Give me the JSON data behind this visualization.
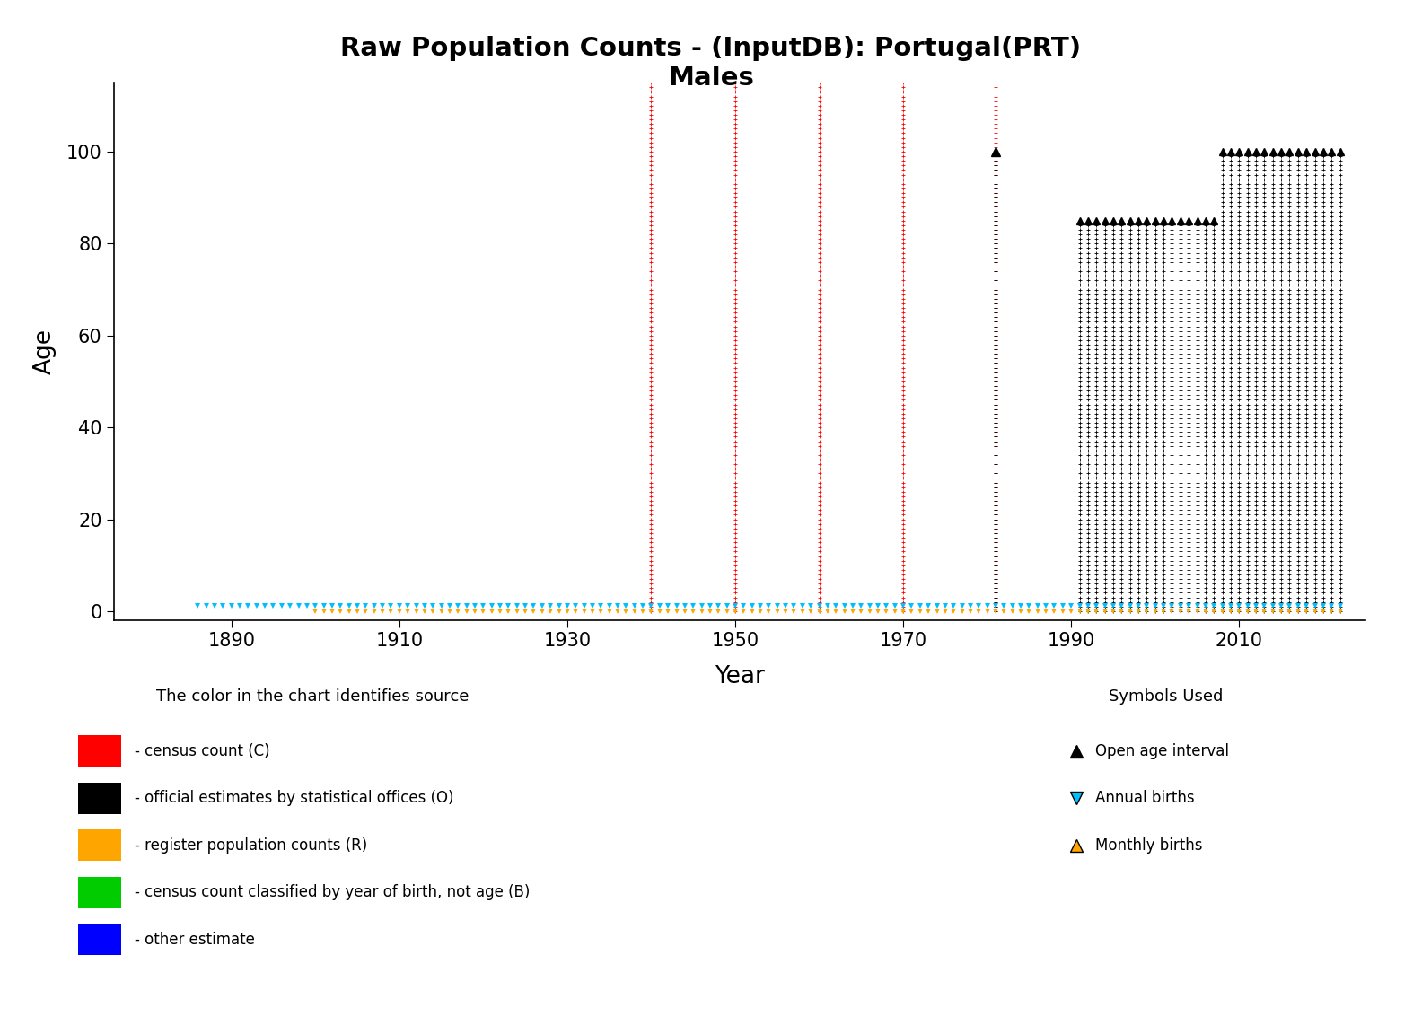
{
  "title_line1": "Raw Population Counts - (InputDB): Portugal(PRT)",
  "title_line2": "Males",
  "xlabel": "Year",
  "ylabel": "Age",
  "xlim": [
    1876,
    2025
  ],
  "ylim": [
    -2,
    115
  ],
  "xticks": [
    1890,
    1910,
    1930,
    1950,
    1970,
    1990,
    2010
  ],
  "yticks": [
    0,
    20,
    40,
    60,
    80,
    100
  ],
  "bg_color": "#ffffff",
  "red_census_years": [
    1940,
    1950,
    1960,
    1970,
    1981
  ],
  "red_max_age": 130,
  "black_single_year": 1981,
  "black_single_max_age": 100,
  "black_group1_start": 1991,
  "black_group1_end": 2007,
  "black_group1_max_age": 85,
  "black_group2_start": 2008,
  "black_group2_end": 2022,
  "black_group2_max_age": 100,
  "orange_start": 1900,
  "orange_end": 2022,
  "cyan_start": 1886,
  "cyan_end": 2022,
  "red_color": "#FF0000",
  "black_color": "#000000",
  "orange_color": "#FFA500",
  "cyan_color": "#00BFFF",
  "legend_color_title": "The color in the chart identifies source",
  "legend_symbol_title": "Symbols Used",
  "color_legend": [
    {
      "color": "#FF0000",
      "label": "- census count (C)"
    },
    {
      "color": "#000000",
      "label": "- official estimates by statistical offices (O)"
    },
    {
      "color": "#FFA500",
      "label": "- register population counts (R)"
    },
    {
      "color": "#00CC00",
      "label": "- census count classified by year of birth, not age (B)"
    },
    {
      "color": "#0000FF",
      "label": "- other estimate"
    }
  ],
  "symbol_legend": [
    {
      "marker": "^",
      "color": "#000000",
      "label": "Open age interval"
    },
    {
      "marker": "v",
      "color": "#00BFFF",
      "label": "Annual births"
    },
    {
      "marker": "^",
      "color": "#FFA500",
      "label": "Monthly births"
    }
  ]
}
